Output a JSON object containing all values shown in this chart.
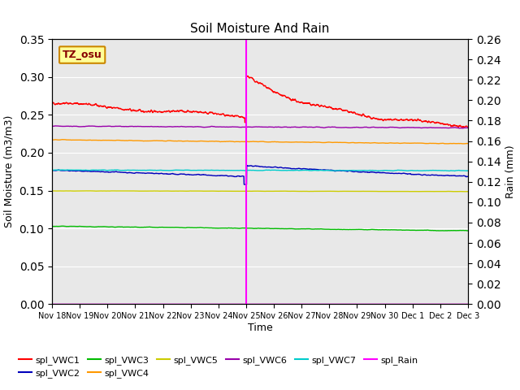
{
  "title": "Soil Moisture And Rain",
  "ylabel_left": "Soil Moisture (m3/m3)",
  "ylabel_right": "Rain (mm)",
  "xlabel": "Time",
  "annotation_label": "TZ_osu",
  "ylim_left": [
    0.0,
    0.35
  ],
  "ylim_right": [
    0.0,
    0.26
  ],
  "yticks_left": [
    0.0,
    0.05,
    0.1,
    0.15,
    0.2,
    0.25,
    0.3,
    0.35
  ],
  "yticks_right": [
    0.0,
    0.02,
    0.04,
    0.06,
    0.08,
    0.1,
    0.12,
    0.14,
    0.16,
    0.18,
    0.2,
    0.22,
    0.24,
    0.26
  ],
  "bg_color": "#e8e8e8",
  "fig_bg_color": "#ffffff",
  "vline_x": 7.0,
  "vline_color": "#ff00ff",
  "series": {
    "spl_VWC1": {
      "color": "#ff0000",
      "lw": 1.0
    },
    "spl_VWC2": {
      "color": "#0000bb",
      "lw": 1.0
    },
    "spl_VWC3": {
      "color": "#00bb00",
      "lw": 1.0
    },
    "spl_VWC4": {
      "color": "#ff9900",
      "lw": 1.0
    },
    "spl_VWC5": {
      "color": "#cccc00",
      "lw": 1.0
    },
    "spl_VWC6": {
      "color": "#9900aa",
      "lw": 1.0
    },
    "spl_VWC7": {
      "color": "#00cccc",
      "lw": 1.0
    },
    "spl_Rain": {
      "color": "#ff00ff",
      "lw": 1.0
    }
  },
  "x_tick_labels": [
    "Nov 18",
    "Nov 19",
    "Nov 20",
    "Nov 21",
    "Nov 22",
    "Nov 23",
    "Nov 24",
    "Nov 25",
    "Nov 26",
    "Nov 27",
    "Nov 28",
    "Nov 29",
    "Nov 30",
    "Dec 1",
    "Dec 2",
    "Dec 3"
  ],
  "n_days": 16,
  "vline_day": 7,
  "annotation_color": "#880000"
}
